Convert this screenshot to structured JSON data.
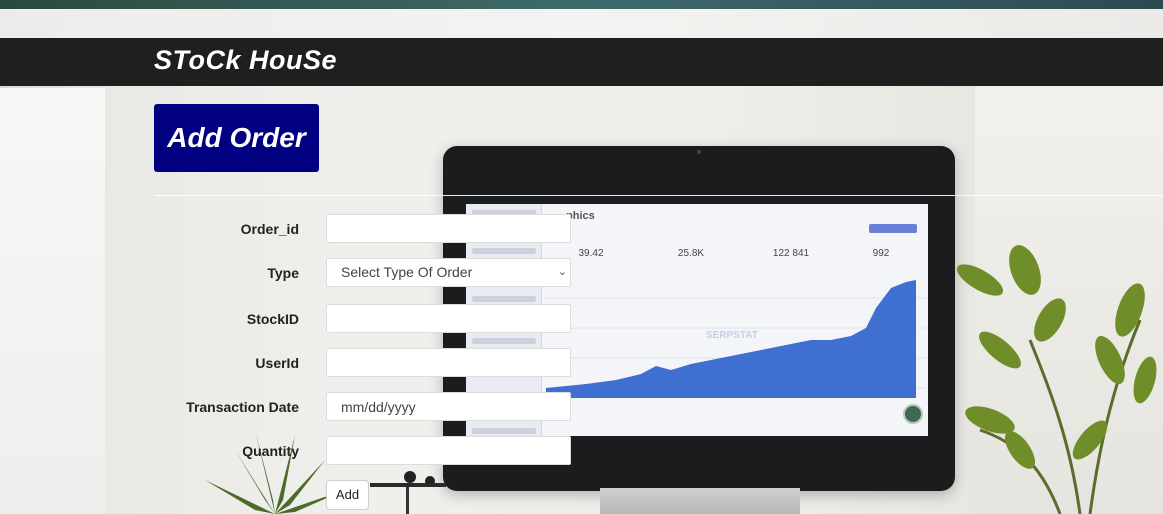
{
  "header": {
    "brand": "SToCk HouSe"
  },
  "page": {
    "title": "Add Order"
  },
  "form": {
    "order_id_label": "Order_id",
    "order_id_value": "",
    "type_label": "Type",
    "type_selected": "Select Type Of Order",
    "stock_id_label": "StockID",
    "stock_id_value": "",
    "user_id_label": "UserId",
    "user_id_value": "",
    "transaction_date_label": "Transaction Date",
    "transaction_date_placeholder": "mm/dd/yyyy",
    "quantity_label": "Quantity",
    "quantity_value": "",
    "submit_label": "Add"
  },
  "monitor_screen": {
    "title": "phics",
    "stats": [
      "39.42",
      "25.8K",
      "122 841",
      "992"
    ],
    "watermark": "SERPSTAT"
  }
}
